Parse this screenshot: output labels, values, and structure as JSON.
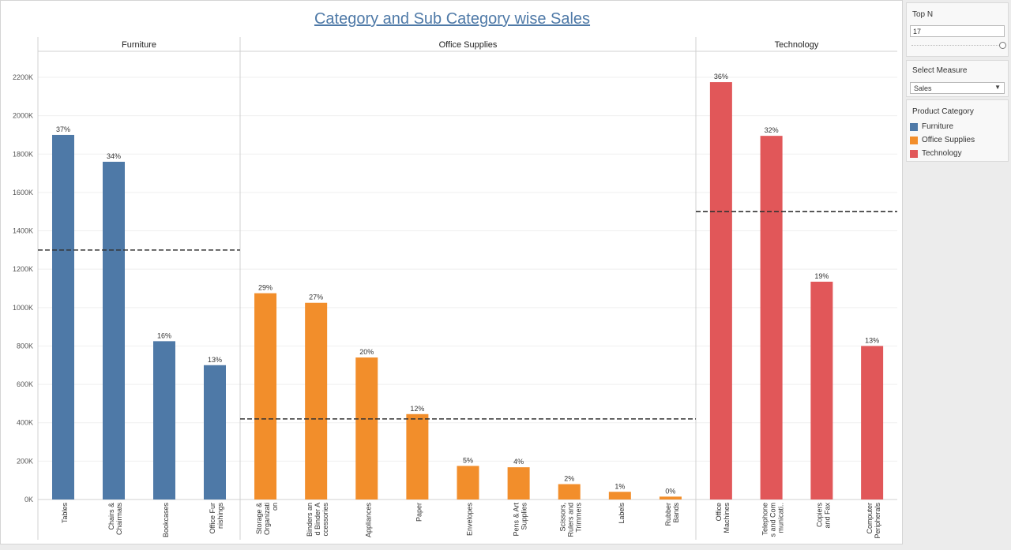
{
  "title": "Category and Sub Category wise Sales",
  "top_n": {
    "label": "Top N",
    "value": "17",
    "slider_fraction": 1.0
  },
  "measure": {
    "label": "Select Measure",
    "selected": "Sales"
  },
  "legend": {
    "title": "Product Category",
    "items": [
      {
        "label": "Furniture",
        "color": "#4e79a7"
      },
      {
        "label": "Office Supplies",
        "color": "#f28e2b"
      },
      {
        "label": "Technology",
        "color": "#e15759"
      }
    ]
  },
  "chart_data": {
    "type": "bar",
    "title": "Category and Sub Category wise Sales",
    "ylim": [
      0,
      2300000
    ],
    "y_ticks": [
      0,
      200000,
      400000,
      600000,
      800000,
      1000000,
      1200000,
      1400000,
      1600000,
      1800000,
      2000000,
      2200000
    ],
    "y_tick_labels": [
      "0K",
      "200K",
      "400K",
      "600K",
      "800K",
      "1000K",
      "1200K",
      "1400K",
      "1600K",
      "1800K",
      "2000K",
      "2200K"
    ],
    "grid": true,
    "legend_placement": "right",
    "panes": [
      {
        "category": "Furniture",
        "color": "#4e79a7",
        "reference_line": 1300000,
        "bars": [
          {
            "label": "Tables",
            "value": 1900000,
            "pct": "37%"
          },
          {
            "label": "Chairs & Chairmats",
            "value": 1760000,
            "pct": "34%"
          },
          {
            "label": "Bookcases",
            "value": 825000,
            "pct": "16%"
          },
          {
            "label": "Office Furnishings",
            "value": 700000,
            "pct": "13%"
          }
        ]
      },
      {
        "category": "Office Supplies",
        "color": "#f28e2b",
        "reference_line": 420000,
        "bars": [
          {
            "label": "Storage & Organization",
            "value": 1075000,
            "pct": "29%"
          },
          {
            "label": "Binders and Binder Accessories",
            "value": 1025000,
            "pct": "27%"
          },
          {
            "label": "Appliances",
            "value": 740000,
            "pct": "20%"
          },
          {
            "label": "Paper",
            "value": 445000,
            "pct": "12%"
          },
          {
            "label": "Envelopes",
            "value": 175000,
            "pct": "5%"
          },
          {
            "label": "Pens & Art Supplies",
            "value": 168000,
            "pct": "4%"
          },
          {
            "label": "Scissors, Rulers and Trimmers",
            "value": 80000,
            "pct": "2%"
          },
          {
            "label": "Labels",
            "value": 40000,
            "pct": "1%"
          },
          {
            "label": "Rubber Bands",
            "value": 15000,
            "pct": "0%"
          }
        ]
      },
      {
        "category": "Technology",
        "color": "#e15759",
        "reference_line": 1500000,
        "bars": [
          {
            "label": "Office Machines",
            "value": 2175000,
            "pct": "36%"
          },
          {
            "label": "Telephones and Communication",
            "value": 1895000,
            "pct": "32%"
          },
          {
            "label": "Copiers and Fax",
            "value": 1135000,
            "pct": "19%"
          },
          {
            "label": "Computer Peripherals",
            "value": 800000,
            "pct": "13%"
          }
        ]
      }
    ],
    "axis_label_lines": {
      "Tables": [
        "Tables"
      ],
      "Chairs & Chairmats": [
        "Chairs &",
        "Chairmats"
      ],
      "Bookcases": [
        "Bookcases"
      ],
      "Office Furnishings": [
        "Office Fur",
        "nishings"
      ],
      "Storage & Organization": [
        "Storage &",
        "Organizati",
        "on"
      ],
      "Binders and Binder Accessories": [
        "Binders an",
        "d Binder A",
        "ccessories"
      ],
      "Appliances": [
        "Appliances"
      ],
      "Paper": [
        "Paper"
      ],
      "Envelopes": [
        "Envelopes"
      ],
      "Pens & Art Supplies": [
        "Pens & Art",
        "Supplies"
      ],
      "Scissors, Rulers and Trimmers": [
        "Scissors,",
        "Rulers and",
        "Trimmers"
      ],
      "Labels": [
        "Labels"
      ],
      "Rubber Bands": [
        "Rubber",
        "Bands"
      ],
      "Office Machines": [
        "Office",
        "Machines"
      ],
      "Telephones and Communication": [
        "Telephone",
        "s and Com",
        "municati.."
      ],
      "Copiers and Fax": [
        "Copiers",
        "and Fax"
      ],
      "Computer Peripherals": [
        "Computer",
        "Peripherals"
      ]
    }
  }
}
